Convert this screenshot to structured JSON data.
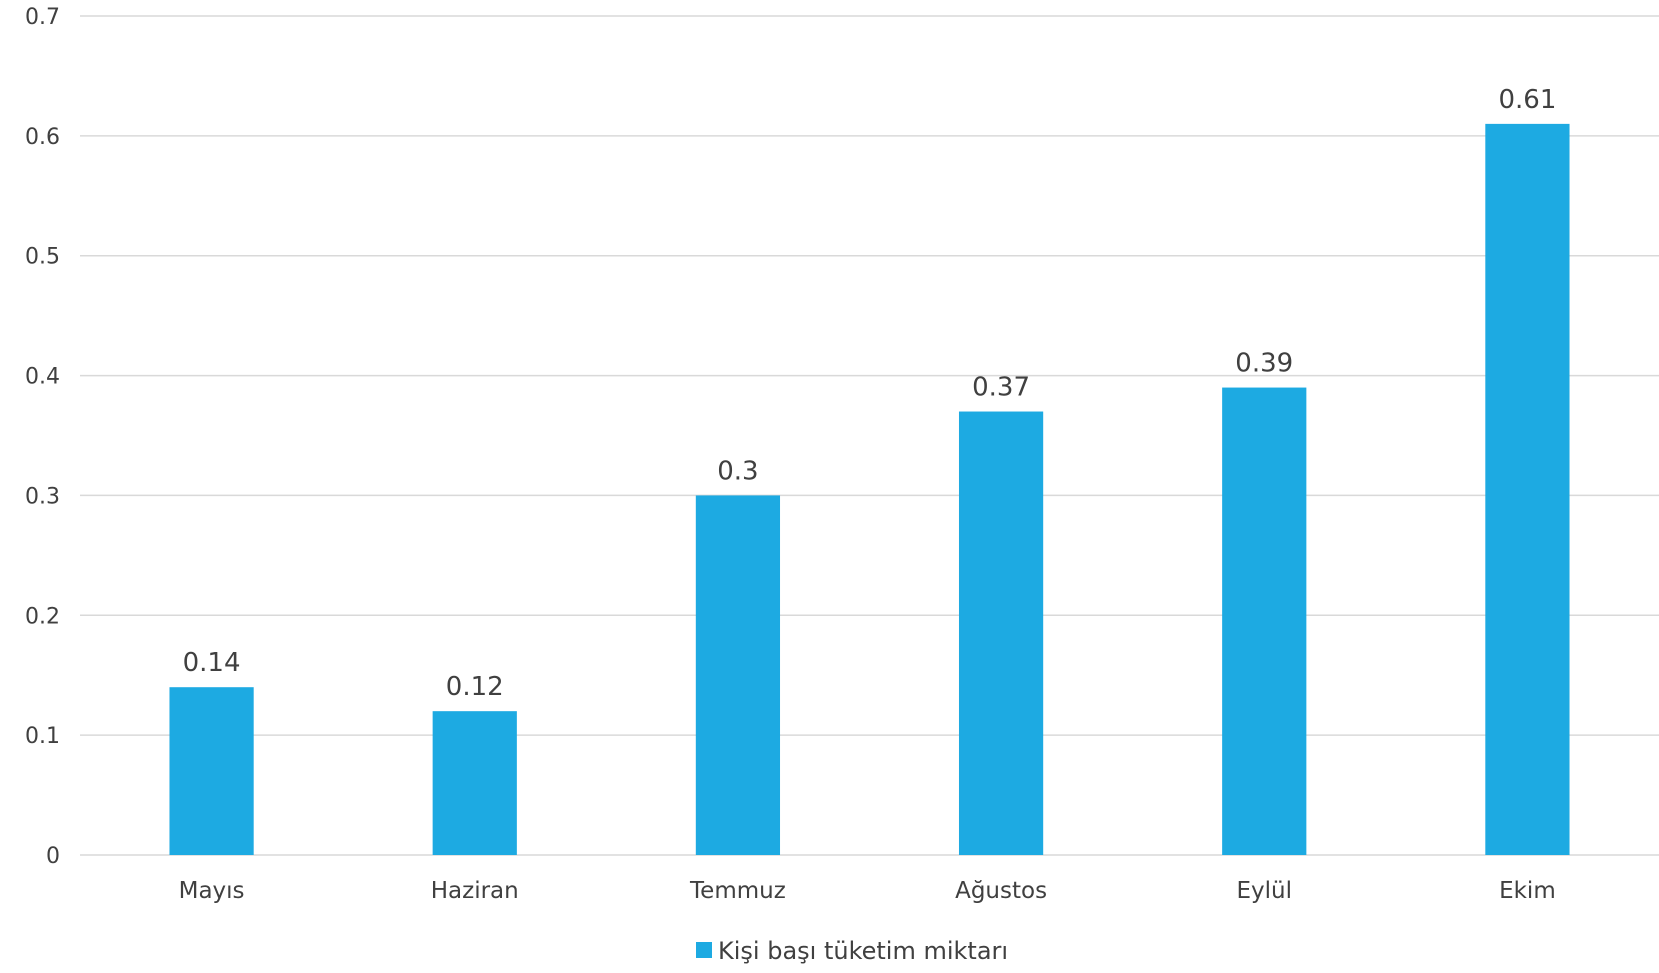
{
  "chart_data": {
    "type": "bar",
    "title": "",
    "xlabel": "",
    "ylabel": "",
    "categories": [
      "Mayıs",
      "Haziran",
      "Temmuz",
      "Ağustos",
      "Eylül",
      "Ekim"
    ],
    "series": [
      {
        "name": "Kişi başı tüketim miktarı",
        "values": [
          0.14,
          0.12,
          0.3,
          0.37,
          0.39,
          0.61
        ],
        "color": "#1DAAE2"
      }
    ],
    "data_labels": [
      "0.14",
      "0.12",
      "0.3",
      "0.37",
      "0.39",
      "0.61"
    ],
    "ylim": [
      0,
      0.7
    ],
    "y_ticks": [
      "0",
      "0.1",
      "0.2",
      "0.3",
      "0.4",
      "0.5",
      "0.6",
      "0.7"
    ],
    "grid": true,
    "gridline_color": "#D9D9D9",
    "legend_position": "bottom"
  }
}
